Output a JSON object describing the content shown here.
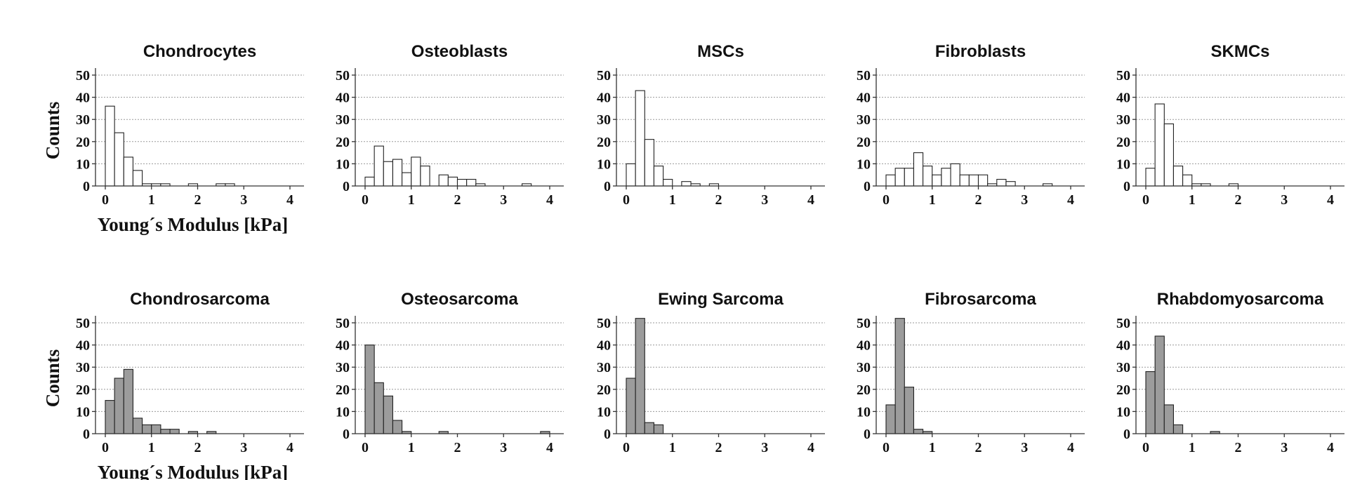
{
  "chart_data": [
    {
      "type": "bar",
      "title": "Chondrocytes",
      "xlabel": "Young´s Modulus [kPa]",
      "ylabel": "Counts",
      "xlim": [
        0,
        4
      ],
      "ylim": [
        0,
        50
      ],
      "xticks": [
        "0",
        "1",
        "2",
        "3",
        "4"
      ],
      "yticks": [
        "0",
        "10",
        "20",
        "30",
        "40",
        "50"
      ],
      "bin_width": 0.2,
      "bar_color": "#ffffff",
      "x": [
        0.1,
        0.3,
        0.5,
        0.7,
        0.9,
        1.1,
        1.3,
        1.9,
        2.5,
        2.7
      ],
      "values": [
        36,
        24,
        13,
        7,
        1,
        1,
        1,
        1,
        1,
        1
      ]
    },
    {
      "type": "bar",
      "title": "Osteoblasts",
      "xlabel": "",
      "ylabel": "",
      "xlim": [
        0,
        4
      ],
      "ylim": [
        0,
        50
      ],
      "xticks": [
        "0",
        "1",
        "2",
        "3",
        "4"
      ],
      "yticks": [
        "0",
        "10",
        "20",
        "30",
        "40",
        "50"
      ],
      "bin_width": 0.2,
      "bar_color": "#ffffff",
      "x": [
        0.1,
        0.3,
        0.5,
        0.7,
        0.9,
        1.1,
        1.3,
        1.7,
        1.9,
        2.1,
        2.3,
        2.5,
        3.5
      ],
      "values": [
        4,
        18,
        11,
        12,
        6,
        13,
        9,
        5,
        4,
        3,
        3,
        1,
        1
      ]
    },
    {
      "type": "bar",
      "title": "MSCs",
      "xlabel": "",
      "ylabel": "",
      "xlim": [
        0,
        4
      ],
      "ylim": [
        0,
        50
      ],
      "xticks": [
        "0",
        "1",
        "2",
        "3",
        "4"
      ],
      "yticks": [
        "0",
        "10",
        "20",
        "30",
        "40",
        "50"
      ],
      "bin_width": 0.2,
      "bar_color": "#ffffff",
      "x": [
        0.1,
        0.3,
        0.5,
        0.7,
        0.9,
        1.3,
        1.5,
        1.9
      ],
      "values": [
        10,
        43,
        21,
        9,
        3,
        2,
        1,
        1
      ]
    },
    {
      "type": "bar",
      "title": "Fibroblasts",
      "xlabel": "",
      "ylabel": "",
      "xlim": [
        0,
        4
      ],
      "ylim": [
        0,
        50
      ],
      "xticks": [
        "0",
        "1",
        "2",
        "3",
        "4"
      ],
      "yticks": [
        "0",
        "10",
        "20",
        "30",
        "40",
        "50"
      ],
      "bin_width": 0.2,
      "bar_color": "#ffffff",
      "x": [
        0.1,
        0.3,
        0.5,
        0.7,
        0.9,
        1.1,
        1.3,
        1.5,
        1.7,
        1.9,
        2.1,
        2.3,
        2.5,
        2.7,
        3.5
      ],
      "values": [
        5,
        8,
        8,
        15,
        9,
        5,
        8,
        10,
        5,
        5,
        5,
        1,
        3,
        2,
        1
      ]
    },
    {
      "type": "bar",
      "title": "SKMCs",
      "xlabel": "",
      "ylabel": "",
      "xlim": [
        0,
        4
      ],
      "ylim": [
        0,
        50
      ],
      "xticks": [
        "0",
        "1",
        "2",
        "3",
        "4"
      ],
      "yticks": [
        "0",
        "10",
        "20",
        "30",
        "40",
        "50"
      ],
      "bin_width": 0.2,
      "bar_color": "#ffffff",
      "x": [
        0.1,
        0.3,
        0.5,
        0.7,
        0.9,
        1.1,
        1.3,
        1.9
      ],
      "values": [
        8,
        37,
        28,
        9,
        5,
        1,
        1,
        1
      ]
    },
    {
      "type": "bar",
      "title": "Chondrosarcoma",
      "xlabel": "Young´s Modulus [kPa]",
      "ylabel": "Counts",
      "xlim": [
        0,
        4
      ],
      "ylim": [
        0,
        50
      ],
      "xticks": [
        "0",
        "1",
        "2",
        "3",
        "4"
      ],
      "yticks": [
        "0",
        "10",
        "20",
        "30",
        "40",
        "50"
      ],
      "bin_width": 0.2,
      "bar_color": "#9c9c9c",
      "x": [
        0.1,
        0.3,
        0.5,
        0.7,
        0.9,
        1.1,
        1.3,
        1.5,
        1.9,
        2.3
      ],
      "values": [
        15,
        25,
        29,
        7,
        4,
        4,
        2,
        2,
        1,
        1
      ]
    },
    {
      "type": "bar",
      "title": "Osteosarcoma",
      "xlabel": "",
      "ylabel": "",
      "xlim": [
        0,
        4
      ],
      "ylim": [
        0,
        50
      ],
      "xticks": [
        "0",
        "1",
        "2",
        "3",
        "4"
      ],
      "yticks": [
        "0",
        "10",
        "20",
        "30",
        "40",
        "50"
      ],
      "bin_width": 0.2,
      "bar_color": "#9c9c9c",
      "x": [
        0.1,
        0.3,
        0.5,
        0.7,
        0.9,
        1.7,
        3.9
      ],
      "values": [
        40,
        23,
        17,
        6,
        1,
        1,
        1
      ]
    },
    {
      "type": "bar",
      "title": "Ewing Sarcoma",
      "xlabel": "",
      "ylabel": "",
      "xlim": [
        0,
        4
      ],
      "ylim": [
        0,
        50
      ],
      "xticks": [
        "0",
        "1",
        "2",
        "3",
        "4"
      ],
      "yticks": [
        "0",
        "10",
        "20",
        "30",
        "40",
        "50"
      ],
      "bin_width": 0.2,
      "bar_color": "#9c9c9c",
      "x": [
        0.1,
        0.3,
        0.5,
        0.7
      ],
      "values": [
        25,
        52,
        5,
        4
      ]
    },
    {
      "type": "bar",
      "title": "Fibrosarcoma",
      "xlabel": "",
      "ylabel": "",
      "xlim": [
        0,
        4
      ],
      "ylim": [
        0,
        50
      ],
      "xticks": [
        "0",
        "1",
        "2",
        "3",
        "4"
      ],
      "yticks": [
        "0",
        "10",
        "20",
        "30",
        "40",
        "50"
      ],
      "bin_width": 0.2,
      "bar_color": "#9c9c9c",
      "x": [
        0.1,
        0.3,
        0.5,
        0.7,
        0.9
      ],
      "values": [
        13,
        52,
        21,
        2,
        1
      ]
    },
    {
      "type": "bar",
      "title": "Rhabdomyosarcoma",
      "xlabel": "",
      "ylabel": "",
      "xlim": [
        0,
        4
      ],
      "ylim": [
        0,
        50
      ],
      "xticks": [
        "0",
        "1",
        "2",
        "3",
        "4"
      ],
      "yticks": [
        "0",
        "10",
        "20",
        "30",
        "40",
        "50"
      ],
      "bin_width": 0.2,
      "bar_color": "#9c9c9c",
      "x": [
        0.1,
        0.3,
        0.5,
        0.7,
        1.5
      ],
      "values": [
        28,
        44,
        13,
        4,
        1
      ]
    }
  ]
}
